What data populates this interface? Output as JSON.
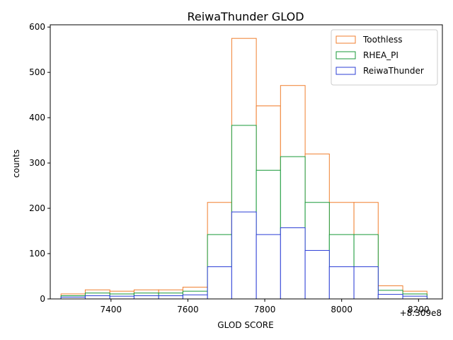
{
  "chart_data": {
    "type": "histogram",
    "title": "ReiwaThunder GLOD",
    "xlabel": "GLOD SCORE",
    "ylabel": "counts",
    "x_offset_label": "+8.309e8",
    "xlim": [
      7242,
      8262
    ],
    "ylim": [
      0,
      605
    ],
    "x_ticks": [
      7400,
      7600,
      7800,
      8000,
      8200
    ],
    "x_tick_labels": [
      "7400",
      "7600",
      "7800",
      "8000",
      "8200"
    ],
    "y_ticks": [
      0,
      100,
      200,
      300,
      400,
      500,
      600
    ],
    "y_tick_labels": [
      "0",
      "100",
      "200",
      "300",
      "400",
      "500",
      "600"
    ],
    "bin_edges": [
      7270,
      7333,
      7397,
      7460,
      7524,
      7587,
      7651,
      7714,
      7778,
      7841,
      7905,
      7968,
      8032,
      8095,
      8159,
      8222
    ],
    "legend_position": "top-right",
    "series": [
      {
        "name": "Toothless",
        "color": "#f07f2f",
        "values": [
          11,
          20,
          17,
          20,
          20,
          26,
          213,
          575,
          426,
          471,
          320,
          213,
          213,
          29,
          17
        ]
      },
      {
        "name": "RHEA_PI",
        "color": "#1a9a3a",
        "values": [
          7,
          13,
          11,
          13,
          13,
          17,
          142,
          383,
          284,
          314,
          213,
          142,
          142,
          19,
          11
        ]
      },
      {
        "name": "ReiwaThunder",
        "color": "#2c3fd6",
        "values": [
          4,
          7,
          6,
          7,
          7,
          9,
          71,
          192,
          142,
          157,
          107,
          71,
          71,
          10,
          6
        ]
      }
    ]
  }
}
